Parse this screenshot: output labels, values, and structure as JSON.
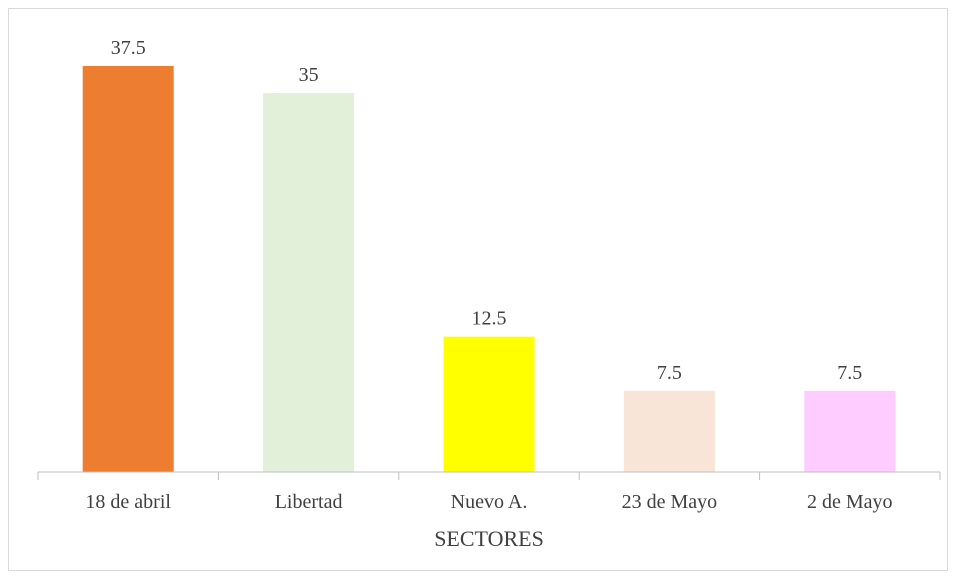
{
  "chart_data": {
    "type": "bar",
    "categories": [
      "18 de abril",
      "Libertad",
      "Nuevo A.",
      "23 de Mayo",
      "2 de Mayo"
    ],
    "values": [
      37.5,
      35,
      12.5,
      7.5,
      7.5
    ],
    "data_labels": [
      "37.5",
      "35",
      "12.5",
      "7.5",
      "7.5"
    ],
    "colors": [
      "#ed7d31",
      "#e2efd9",
      "#ffff00",
      "#f8e5d7",
      "#ffccff"
    ],
    "title": "",
    "xlabel": "SECTORES",
    "ylabel": "",
    "ylim": [
      0,
      37.5
    ],
    "grid": false,
    "legend": "none"
  }
}
